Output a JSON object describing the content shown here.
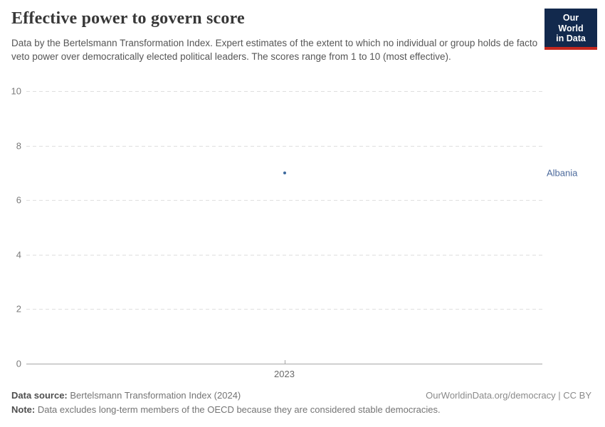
{
  "header": {
    "subtitle": "Data by the Bertelsmann Transformation Index. Expert estimates of the extent to which no individual or group holds de facto veto power over democratically elected political leaders. The scores range from 1 to 10 (most effective).",
    "logo": {
      "line1": "Our World",
      "line2": "in Data",
      "bg_color": "#12294d",
      "accent_color": "#c3271e"
    }
  },
  "chart_data": {
    "type": "scatter",
    "title": "Effective power to govern score",
    "x": [
      2023
    ],
    "xticks": [
      "2023"
    ],
    "series": [
      {
        "name": "Albania",
        "values": [
          7
        ],
        "color": "#3d6a9e",
        "label_color": "#4c6a9c"
      }
    ],
    "yticks": [
      0,
      2,
      4,
      6,
      8,
      10
    ],
    "ylim": [
      0,
      10
    ],
    "grid": true,
    "gridline_color": "#dfdfdf",
    "axis_color": "#a6a6a6",
    "legend_position": "right-inline-label"
  },
  "footer": {
    "data_source_label": "Data source:",
    "data_source_value": " Bertelsmann Transformation Index (2024)",
    "rights": "OurWorldinData.org/democracy | CC BY",
    "note_label": "Note:",
    "note_value": " Data excludes long-term members of the OECD because they are considered stable democracies."
  }
}
